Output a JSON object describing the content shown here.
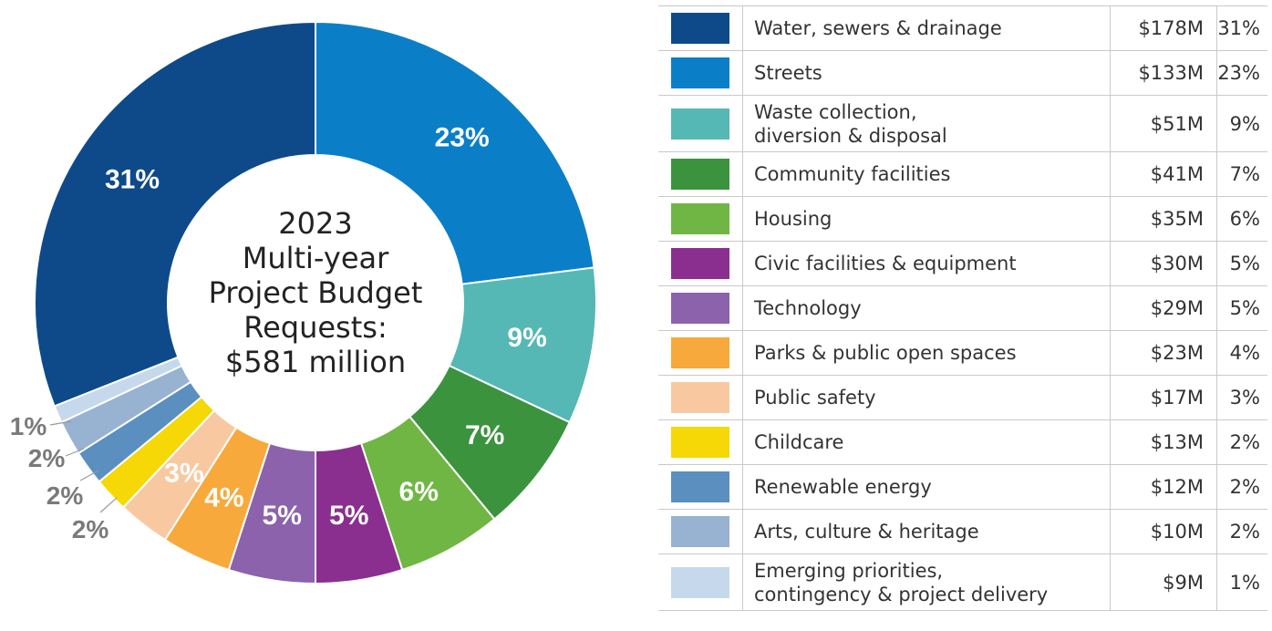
{
  "chart_data": {
    "type": "pie",
    "center_title": [
      "2023",
      "Multi-year",
      "Project Budget",
      "Requests:",
      "$581 million"
    ],
    "slices": [
      {
        "label": "Water, sewers & drainage",
        "amount": "$178M",
        "pct_text": "31%",
        "value": 31,
        "color": "#0e4a8a"
      },
      {
        "label": "Streets",
        "amount": "$133M",
        "pct_text": "23%",
        "value": 23,
        "color": "#0a7fc8"
      },
      {
        "label": "Waste collection, diversion & disposal",
        "label_lines": [
          "Waste collection,",
          "diversion & disposal"
        ],
        "amount": "$51M",
        "pct_text": "9%",
        "value": 9,
        "color": "#55b8b4"
      },
      {
        "label": "Community facilities",
        "amount": "$41M",
        "pct_text": "7%",
        "value": 7,
        "color": "#3b933e"
      },
      {
        "label": "Housing",
        "amount": "$35M",
        "pct_text": "6%",
        "value": 6,
        "color": "#70b644"
      },
      {
        "label": "Civic facilities & equipment",
        "amount": "$30M",
        "pct_text": "5%",
        "value": 5,
        "color": "#8a2f90"
      },
      {
        "label": "Technology",
        "amount": "$29M",
        "pct_text": "5%",
        "value": 5,
        "color": "#8c62ac"
      },
      {
        "label": "Parks & public open spaces",
        "amount": "$23M",
        "pct_text": "4%",
        "value": 4,
        "color": "#f7a93b"
      },
      {
        "label": "Public safety",
        "amount": "$17M",
        "pct_text": "3%",
        "value": 3,
        "color": "#f8c9a0"
      },
      {
        "label": "Childcare",
        "amount": "$13M",
        "pct_text": "2%",
        "value": 2,
        "color": "#f6d806"
      },
      {
        "label": "Renewable energy",
        "amount": "$12M",
        "pct_text": "2%",
        "value": 2,
        "color": "#5b8fc0"
      },
      {
        "label": "Arts, culture & heritage",
        "amount": "$10M",
        "pct_text": "2%",
        "value": 2,
        "color": "#98b2d1"
      },
      {
        "label": "Emerging priorities, contingency & project delivery",
        "label_lines": [
          "Emerging priorities,",
          "contingency & project delivery"
        ],
        "amount": "$9M",
        "pct_text": "1%",
        "value": 1,
        "color": "#c6d8ec"
      }
    ],
    "slice_label_colors": {
      "inside": "#ffffff",
      "outside": "#7a7a7a"
    }
  }
}
